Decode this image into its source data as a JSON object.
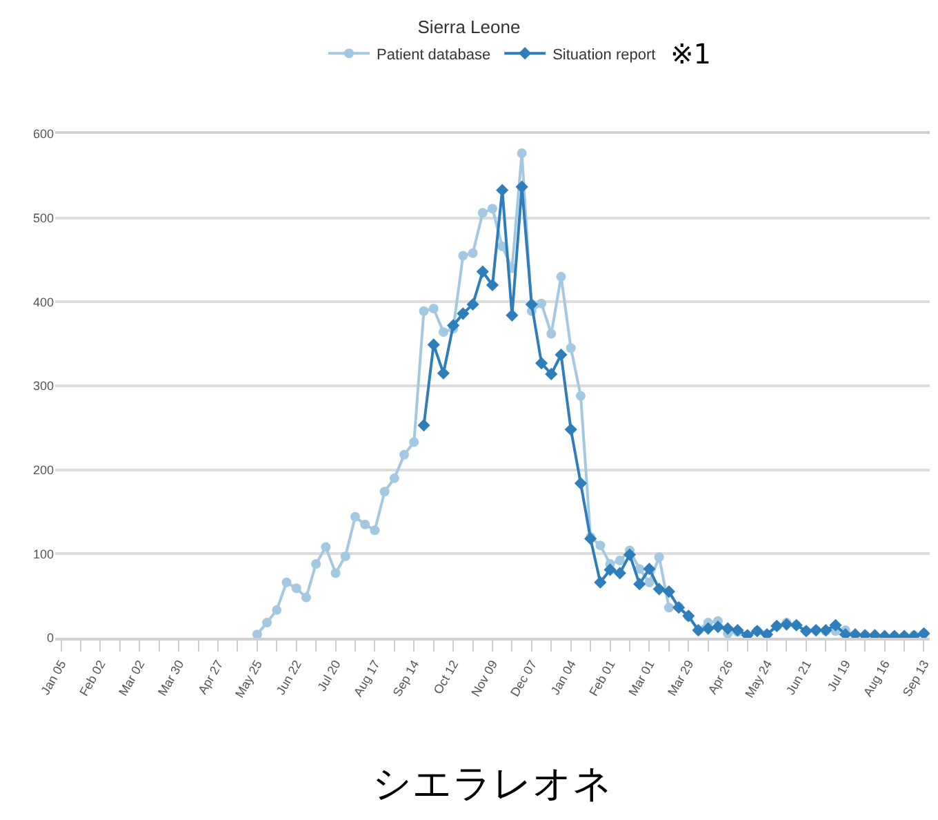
{
  "chart_data": {
    "type": "line",
    "title": "Sierra Leone",
    "categories": [
      "Jan 05",
      null,
      null,
      null,
      "Feb 02",
      null,
      null,
      null,
      "Mar 02",
      null,
      null,
      null,
      "Mar 30",
      null,
      null,
      null,
      "Apr 27",
      null,
      null,
      null,
      "May 25",
      null,
      null,
      null,
      "Jun 22",
      null,
      null,
      null,
      "Jul 20",
      null,
      null,
      null,
      "Aug 17",
      null,
      null,
      null,
      "Sep 14",
      null,
      null,
      null,
      "Oct 12",
      null,
      null,
      null,
      "Nov 09",
      null,
      null,
      null,
      "Dec 07",
      null,
      null,
      null,
      "Jan 04",
      null,
      null,
      null,
      "Feb 01",
      null,
      null,
      null,
      "Mar 01",
      null,
      null,
      null,
      "Mar 29",
      null,
      null,
      null,
      "Apr 26",
      null,
      null,
      null,
      "May 24",
      null,
      null,
      null,
      "Jun 21",
      null,
      null,
      null,
      "Jul 19",
      null,
      null,
      null,
      "Aug 16",
      null,
      null,
      null,
      "Sep 13"
    ],
    "series": [
      {
        "name": "Patient database",
        "color": "#a3c9e2",
        "marker": "circle",
        "values": [
          null,
          null,
          null,
          null,
          null,
          null,
          null,
          null,
          null,
          null,
          null,
          null,
          null,
          null,
          null,
          null,
          null,
          null,
          null,
          null,
          4,
          18,
          33,
          66,
          59,
          48,
          88,
          108,
          77,
          97,
          144,
          135,
          128,
          174,
          190,
          218,
          233,
          389,
          392,
          364,
          368,
          455,
          458,
          506,
          511,
          466,
          440,
          577,
          389,
          398,
          362,
          430,
          345,
          288,
          120,
          110,
          88,
          92,
          104,
          82,
          66,
          96,
          36,
          37,
          25,
          9,
          18,
          20,
          5,
          7,
          3,
          8,
          4,
          14,
          18,
          15,
          8,
          9,
          8,
          8,
          9,
          3,
          3,
          2,
          0,
          2,
          2,
          3,
          5
        ]
      },
      {
        "name": "Situation report",
        "color": "#2f7ebc",
        "marker": "diamond",
        "values": [
          null,
          null,
          null,
          null,
          null,
          null,
          null,
          null,
          null,
          null,
          null,
          null,
          null,
          null,
          null,
          null,
          null,
          null,
          null,
          null,
          null,
          null,
          null,
          null,
          null,
          null,
          null,
          null,
          null,
          null,
          null,
          null,
          null,
          null,
          null,
          null,
          null,
          253,
          349,
          315,
          372,
          386,
          397,
          436,
          420,
          533,
          384,
          537,
          397,
          327,
          314,
          337,
          248,
          184,
          118,
          66,
          81,
          77,
          99,
          64,
          82,
          58,
          55,
          36,
          26,
          9,
          11,
          13,
          11,
          9,
          3,
          8,
          4,
          14,
          16,
          15,
          8,
          9,
          9,
          15,
          4,
          4,
          3,
          3,
          2,
          2,
          2,
          2,
          5
        ]
      }
    ],
    "ylim": [
      0,
      600
    ],
    "yticks": [
      0,
      100,
      200,
      300,
      400,
      500,
      600
    ],
    "grid": "y",
    "legend": "top",
    "line_style": "solid",
    "annotations": [
      "※1",
      "シエラレオネ"
    ]
  }
}
